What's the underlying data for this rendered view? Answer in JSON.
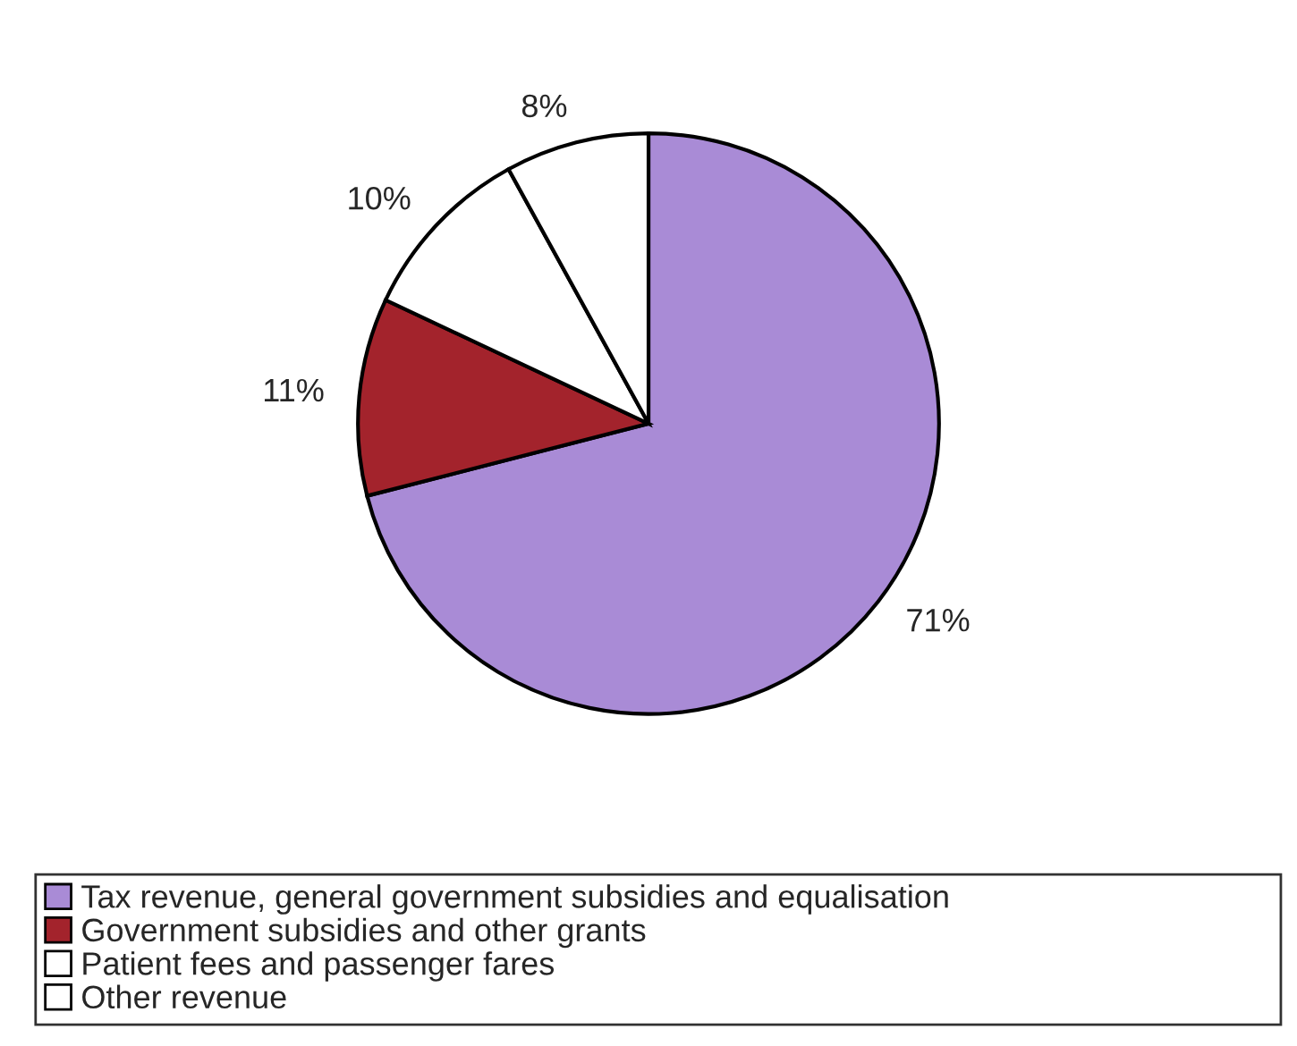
{
  "chart_data": {
    "type": "pie",
    "categories": [
      "Tax revenue, general government subsidies and equalisation",
      "Government subsidies and other grants",
      "Patient fees and passenger fares",
      "Other revenue"
    ],
    "values": [
      71,
      11,
      10,
      8
    ],
    "colors": [
      "#a98bd6",
      "#a3232c",
      "#ffffff",
      "#ffffff"
    ],
    "value_labels": [
      "71%",
      "11%",
      "10%",
      "8%"
    ],
    "legend": "bottom"
  }
}
